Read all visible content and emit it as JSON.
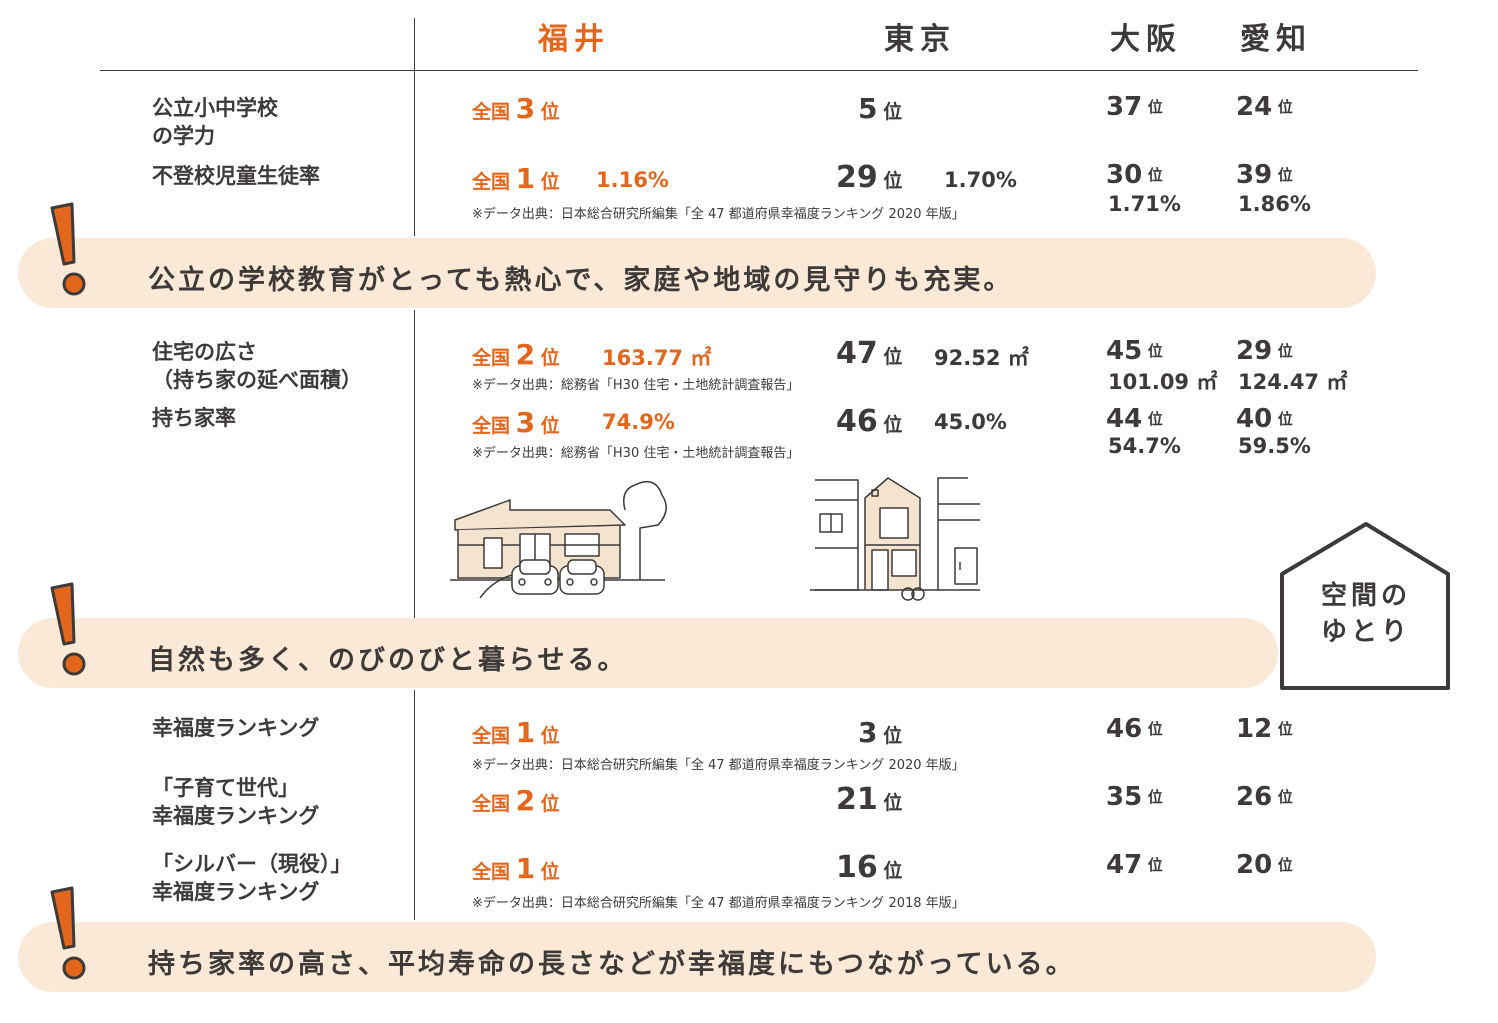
{
  "columns": {
    "fukui": "福井",
    "tokyo": "東京",
    "osaka": "大阪",
    "aichi": "愛知"
  },
  "rows": {
    "academic": {
      "label1": "公立小中学校",
      "label2": "の学力",
      "fukui_pre": "全国",
      "fukui_num": "3",
      "fukui_unit": "位",
      "tokyo_num": "5",
      "tokyo_unit": "位",
      "osaka_num": "37",
      "osaka_unit": "位",
      "aichi_num": "24",
      "aichi_unit": "位"
    },
    "truancy": {
      "label": "不登校児童生徒率",
      "fukui_pre": "全国",
      "fukui_num": "1",
      "fukui_unit": "位",
      "fukui_val": "1.16%",
      "tokyo_num": "29",
      "tokyo_unit": "位",
      "tokyo_val": "1.70%",
      "osaka_num": "30",
      "osaka_unit": "位",
      "osaka_val": "1.71%",
      "aichi_num": "39",
      "aichi_unit": "位",
      "aichi_val": "1.86%",
      "note": "※データ出典：日本総合研究所編集「全 47 都道府県幸福度ランキング 2020 年版」"
    },
    "house_area": {
      "label1": "住宅の広さ",
      "label2": "（持ち家の延べ面積）",
      "fukui_pre": "全国",
      "fukui_num": "2",
      "fukui_unit": "位",
      "fukui_val": "163.77 ㎡",
      "tokyo_num": "47",
      "tokyo_unit": "位",
      "tokyo_val": "92.52 ㎡",
      "osaka_num": "45",
      "osaka_unit": "位",
      "osaka_val": "101.09 ㎡",
      "aichi_num": "29",
      "aichi_unit": "位",
      "aichi_val": "124.47 ㎡",
      "note": "※データ出典：総務省「H30 住宅・土地統計調査報告」"
    },
    "homeownership": {
      "label": "持ち家率",
      "fukui_pre": "全国",
      "fukui_num": "3",
      "fukui_unit": "位",
      "fukui_val": "74.9%",
      "tokyo_num": "46",
      "tokyo_unit": "位",
      "tokyo_val": "45.0%",
      "osaka_num": "44",
      "osaka_unit": "位",
      "osaka_val": "54.7%",
      "aichi_num": "40",
      "aichi_unit": "位",
      "aichi_val": "59.5%",
      "note": "※データ出典：総務省「H30 住宅・土地統計調査報告」"
    },
    "happiness": {
      "label": "幸福度ランキング",
      "fukui_pre": "全国",
      "fukui_num": "1",
      "fukui_unit": "位",
      "tokyo_num": "3",
      "tokyo_unit": "位",
      "osaka_num": "46",
      "osaka_unit": "位",
      "aichi_num": "12",
      "aichi_unit": "位",
      "note": "※データ出典：日本総合研究所編集「全 47 都道府県幸福度ランキング 2020 年版」"
    },
    "child_happiness": {
      "label1": "「子育て世代」",
      "label2": "幸福度ランキング",
      "fukui_pre": "全国",
      "fukui_num": "2",
      "fukui_unit": "位",
      "tokyo_num": "21",
      "tokyo_unit": "位",
      "osaka_num": "35",
      "osaka_unit": "位",
      "aichi_num": "26",
      "aichi_unit": "位"
    },
    "silver_happiness": {
      "label1": "「シルバー（現役）」",
      "label2": "幸福度ランキング",
      "fukui_pre": "全国",
      "fukui_num": "1",
      "fukui_unit": "位",
      "tokyo_num": "16",
      "tokyo_unit": "位",
      "osaka_num": "47",
      "osaka_unit": "位",
      "aichi_num": "20",
      "aichi_unit": "位",
      "note": "※データ出典：日本総合研究所編集「全 47 都道府県幸福度ランキング 2018 年版」"
    }
  },
  "banners": {
    "b1": "公立の学校教育がとっても熱心で、家庭や地域の見守りも充実。",
    "b2": "自然も多く、のびのびと暮らせる。",
    "b3": "持ち家率の高さ、平均寿命の長さなどが幸福度にもつながっている。"
  },
  "house_badge": {
    "line1": "空間の",
    "line2": "ゆとり"
  },
  "colors": {
    "accent": "#e2661b",
    "banner_bg": "#fbe9d7",
    "text": "#3d3a39",
    "illustration_fill": "#f3e3cf"
  },
  "icons": {
    "exclamation": "exclamation-icon",
    "house": "house-icon"
  }
}
